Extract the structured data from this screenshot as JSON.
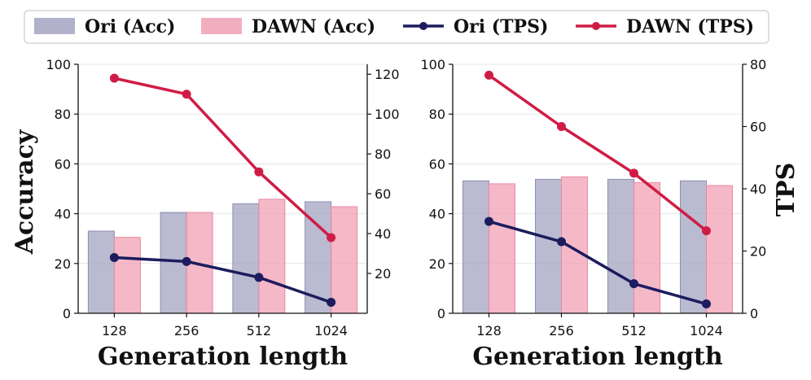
{
  "legend": {
    "items": [
      {
        "label": "Ori (Acc)",
        "kind": "bar",
        "color": "#a3a3c2"
      },
      {
        "label": "DAWN (Acc)",
        "kind": "bar",
        "color": "#f0a0b4"
      },
      {
        "label": "Ori (TPS)",
        "kind": "line",
        "color": "#1c1c5e"
      },
      {
        "label": "DAWN (TPS)",
        "kind": "line",
        "color": "#d01c45"
      }
    ]
  },
  "chart_data": [
    {
      "type": "bar+line",
      "categories": [
        "128",
        "256",
        "512",
        "1024"
      ],
      "xlabel": "Generation length",
      "ylabel": "Accuracy",
      "ylabel_right": "",
      "ylim": [
        0,
        100
      ],
      "ylim_right": [
        0,
        125
      ],
      "yticks": [
        0,
        20,
        40,
        60,
        80,
        100
      ],
      "yticks_right": [
        20,
        40,
        60,
        80,
        100,
        120
      ],
      "bars": [
        {
          "name": "Ori (Acc)",
          "values": [
            33.0,
            40.5,
            44.0,
            44.8
          ]
        },
        {
          "name": "DAWN (Acc)",
          "values": [
            30.5,
            40.5,
            45.8,
            42.8
          ]
        }
      ],
      "lines": [
        {
          "name": "Ori (TPS)",
          "values": [
            28,
            26,
            18,
            5.5
          ]
        },
        {
          "name": "DAWN (TPS)",
          "values": [
            118,
            110,
            71,
            38
          ]
        }
      ],
      "grid": true
    },
    {
      "type": "bar+line",
      "categories": [
        "128",
        "256",
        "512",
        "1024"
      ],
      "xlabel": "Generation length",
      "ylabel": "",
      "ylabel_right": "TPS",
      "ylim": [
        0,
        100
      ],
      "ylim_right": [
        0,
        80
      ],
      "yticks": [
        0,
        20,
        40,
        60,
        80,
        100
      ],
      "yticks_right": [
        0,
        20,
        40,
        60,
        80
      ],
      "bars": [
        {
          "name": "Ori (Acc)",
          "values": [
            53.2,
            53.8,
            53.8,
            53.2
          ]
        },
        {
          "name": "DAWN (Acc)",
          "values": [
            52.0,
            54.8,
            52.5,
            51.3
          ]
        }
      ],
      "lines": [
        {
          "name": "Ori (TPS)",
          "values": [
            29.5,
            23.0,
            9.5,
            3.0
          ]
        },
        {
          "name": "DAWN (TPS)",
          "values": [
            76.5,
            60.0,
            45.0,
            26.5
          ]
        }
      ],
      "grid": true
    }
  ]
}
